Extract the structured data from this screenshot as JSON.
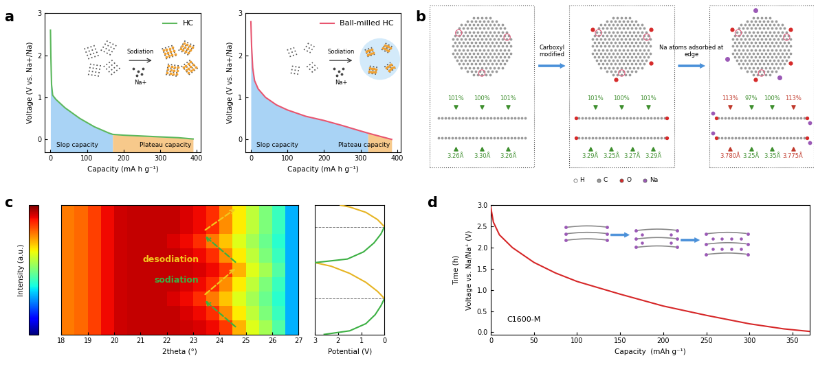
{
  "chart_data": [
    {
      "panel": "a",
      "type": "line",
      "series": [
        {
          "name": "HC",
          "color": "#5cb85c",
          "x": [
            0,
            1,
            3,
            6,
            15,
            40,
            80,
            120,
            160,
            170,
            200,
            250,
            300,
            350,
            390
          ],
          "values": [
            2.6,
            2.0,
            1.3,
            1.05,
            0.95,
            0.75,
            0.5,
            0.3,
            0.15,
            0.12,
            0.1,
            0.08,
            0.06,
            0.04,
            0.01
          ]
        }
      ],
      "xlabel": "Capacity (mA h g⁻¹)",
      "ylabel": "Voltage (V vs. Na+/Na)",
      "xlim": [
        -15,
        410
      ],
      "ylim": [
        -0.3,
        3
      ],
      "xticks": [
        0,
        100,
        200,
        300,
        400
      ],
      "yticks": [
        0,
        1,
        2,
        3
      ],
      "legend": "upper right",
      "regions": [
        {
          "label": "Slop capacity",
          "from": 0,
          "to": 170,
          "color": "#a9d3f5"
        },
        {
          "label": "Plateau capacity",
          "from": 170,
          "to": 390,
          "color": "#f7c98b"
        }
      ],
      "annotations": [
        "Sodiation",
        "Na+"
      ]
    },
    {
      "type": "line",
      "series": [
        {
          "name": "Ball-milled HC",
          "color": "#e8556f",
          "x": [
            0,
            2,
            5,
            10,
            20,
            40,
            70,
            100,
            150,
            200,
            250,
            300,
            320,
            350,
            385
          ],
          "values": [
            2.8,
            2.2,
            1.7,
            1.4,
            1.2,
            1.0,
            0.82,
            0.7,
            0.55,
            0.45,
            0.33,
            0.2,
            0.15,
            0.08,
            0.0
          ]
        }
      ],
      "xlabel": "Capacity (mA h g⁻¹)",
      "ylabel": "Voltage (V vs. Na+/Na)",
      "xlim": [
        -15,
        410
      ],
      "ylim": [
        -0.3,
        3
      ],
      "xticks": [
        0,
        100,
        200,
        300,
        400
      ],
      "yticks": [
        0,
        1,
        2,
        3
      ],
      "legend": "upper right",
      "regions": [
        {
          "label": "Slop capacity",
          "from": 0,
          "to": 320,
          "color": "#a9d3f5"
        },
        {
          "label": "Plateau capacity",
          "from": 320,
          "to": 385,
          "color": "#f7c98b"
        }
      ],
      "annotations": [
        "Sodiation",
        "Na+"
      ]
    },
    {
      "panel": "c",
      "type": "heatmap",
      "x_edges": [
        18,
        18.5,
        19,
        19.5,
        20,
        20.5,
        21,
        21.5,
        22,
        22.5,
        23,
        23.5,
        24,
        24.5,
        25,
        25.5,
        26,
        26.5,
        27
      ],
      "y_edges": [
        0,
        0.4,
        0.8,
        1.2,
        1.6,
        2.0,
        2.4,
        2.8,
        3.2,
        3.6
      ],
      "cells": [
        [
          0.78,
          0.8,
          0.84,
          0.9,
          0.93,
          0.94,
          0.94,
          0.94,
          0.94,
          0.93,
          0.92,
          0.9,
          0.85,
          0.72,
          0.62,
          0.55,
          0.45,
          0.3
        ],
        [
          0.78,
          0.8,
          0.84,
          0.9,
          0.93,
          0.94,
          0.94,
          0.94,
          0.94,
          0.92,
          0.9,
          0.86,
          0.76,
          0.66,
          0.58,
          0.5,
          0.42,
          0.3
        ],
        [
          0.78,
          0.8,
          0.84,
          0.9,
          0.93,
          0.94,
          0.94,
          0.94,
          0.92,
          0.9,
          0.86,
          0.78,
          0.7,
          0.62,
          0.55,
          0.48,
          0.4,
          0.3
        ],
        [
          0.78,
          0.8,
          0.84,
          0.9,
          0.93,
          0.94,
          0.94,
          0.94,
          0.94,
          0.92,
          0.9,
          0.86,
          0.76,
          0.66,
          0.58,
          0.5,
          0.42,
          0.3
        ],
        [
          0.78,
          0.8,
          0.84,
          0.9,
          0.93,
          0.94,
          0.94,
          0.94,
          0.94,
          0.93,
          0.92,
          0.9,
          0.85,
          0.72,
          0.62,
          0.55,
          0.45,
          0.3
        ],
        [
          0.78,
          0.8,
          0.84,
          0.9,
          0.93,
          0.94,
          0.94,
          0.94,
          0.94,
          0.92,
          0.9,
          0.86,
          0.76,
          0.66,
          0.58,
          0.5,
          0.42,
          0.3
        ],
        [
          0.78,
          0.8,
          0.84,
          0.9,
          0.93,
          0.94,
          0.94,
          0.94,
          0.92,
          0.9,
          0.86,
          0.78,
          0.7,
          0.62,
          0.55,
          0.48,
          0.4,
          0.3
        ],
        [
          0.78,
          0.8,
          0.84,
          0.9,
          0.93,
          0.94,
          0.94,
          0.94,
          0.94,
          0.92,
          0.9,
          0.86,
          0.76,
          0.66,
          0.58,
          0.5,
          0.42,
          0.3
        ],
        [
          0.78,
          0.8,
          0.84,
          0.9,
          0.93,
          0.94,
          0.94,
          0.94,
          0.94,
          0.92,
          0.9,
          0.86,
          0.76,
          0.66,
          0.58,
          0.5,
          0.42,
          0.3
        ]
      ],
      "color_range": [
        0,
        1
      ],
      "colorbar_label": "Intensity (a.u.)",
      "xlabel": "2theta (°)",
      "xlim": [
        18,
        27
      ],
      "xticks": [
        18,
        19,
        20,
        21,
        22,
        23,
        24,
        25,
        26,
        27
      ],
      "ylim": [
        0,
        3.6
      ],
      "tick_labels": "x",
      "annotations": [
        {
          "text": "desodiation",
          "color": "#f2c81e"
        },
        {
          "text": "sodiation",
          "color": "#3cb043"
        }
      ]
    },
    {
      "type": "line",
      "series": [
        {
          "color": "#3cb043",
          "x": [
            2.6,
            1.5,
            0.8,
            0.4,
            0.15,
            0.0
          ],
          "values": [
            0,
            0.1,
            0.3,
            0.55,
            0.8,
            1.0
          ]
        },
        {
          "color": "#e6b422",
          "x": [
            0.0,
            0.3,
            0.8,
            1.5,
            2.3,
            3.0
          ],
          "values": [
            1.0,
            1.2,
            1.45,
            1.7,
            1.9,
            2.0
          ]
        },
        {
          "color": "#3cb043",
          "x": [
            3.0,
            1.6,
            0.9,
            0.45,
            0.15,
            0.0
          ],
          "values": [
            2.0,
            2.1,
            2.3,
            2.55,
            2.8,
            3.0
          ]
        },
        {
          "color": "#e6b422",
          "x": [
            0.0,
            0.3,
            0.8,
            1.5,
            1.9
          ],
          "values": [
            3.0,
            3.2,
            3.4,
            3.55,
            3.6
          ]
        }
      ],
      "xlabel": "Potential (V)",
      "xlim": [
        3,
        0
      ],
      "xticks": [
        3,
        2,
        1,
        0
      ],
      "ylim": [
        0,
        3.6
      ],
      "tick_labels": "x",
      "dashed_lines": [
        1.0,
        3.0
      ]
    },
    {
      "panel": "d",
      "type": "line",
      "series": [
        {
          "color": "#d62728",
          "x": [
            0,
            3,
            10,
            25,
            50,
            75,
            100,
            150,
            200,
            250,
            300,
            340,
            370
          ],
          "values": [
            2.95,
            2.6,
            2.3,
            2.0,
            1.65,
            1.4,
            1.2,
            0.9,
            0.62,
            0.4,
            0.2,
            0.08,
            0.02
          ]
        }
      ],
      "xlabel": "Capacity  (mAh g⁻¹)",
      "ylabel": "Voltage vs. Na/Na⁺ (V)",
      "time_label": "Time (h)",
      "xlim": [
        0,
        370
      ],
      "ylim": [
        -0.05,
        3.0
      ],
      "xticks": [
        0,
        50,
        100,
        150,
        200,
        250,
        300,
        350
      ],
      "yticks": [
        0.0,
        0.5,
        1.0,
        1.5,
        2.0,
        2.5,
        3.0
      ],
      "annotations": [
        "C1600-M"
      ]
    }
  ],
  "diagram": {
    "panel": "b",
    "arrows": [
      "Carboxyl\nmodified",
      "Na atoms adsorbed at\nedge"
    ],
    "boxes": [
      {
        "top": [
          {
            "text": "101%",
            "color": "#3f8f2f"
          },
          {
            "text": "100%",
            "color": "#3f8f2f"
          },
          {
            "text": "101%",
            "color": "#3f8f2f"
          }
        ],
        "bottom": [
          {
            "text": "3.26Å",
            "color": "#3f8f2f"
          },
          {
            "text": "3.30Å",
            "color": "#3f8f2f"
          },
          {
            "text": "3.26Å",
            "color": "#3f8f2f"
          }
        ]
      },
      {
        "top": [
          {
            "text": "101%",
            "color": "#3f8f2f"
          },
          {
            "text": "100%",
            "color": "#3f8f2f"
          },
          {
            "text": "101%",
            "color": "#3f8f2f"
          }
        ],
        "bottom": [
          {
            "text": "3.29Å",
            "color": "#3f8f2f"
          },
          {
            "text": "3.25Å",
            "color": "#3f8f2f"
          },
          {
            "text": "3.27Å",
            "color": "#3f8f2f"
          },
          {
            "text": "3.29Å",
            "color": "#3f8f2f"
          }
        ]
      },
      {
        "top": [
          {
            "text": "113%",
            "color": "#c0392b"
          },
          {
            "text": "97%",
            "color": "#3f8f2f"
          },
          {
            "text": "100%",
            "color": "#3f8f2f"
          },
          {
            "text": "113%",
            "color": "#c0392b"
          }
        ],
        "bottom": [
          {
            "text": "3.780Å",
            "color": "#c0392b"
          },
          {
            "text": "3.25Å",
            "color": "#3f8f2f"
          },
          {
            "text": "3.35Å",
            "color": "#3f8f2f"
          },
          {
            "text": "3.775Å",
            "color": "#c0392b"
          }
        ]
      }
    ],
    "legend": [
      {
        "text": "H",
        "color": "#ffffff"
      },
      {
        "text": "C",
        "color": "#9a9a9a"
      },
      {
        "text": "O",
        "color": "#d62a2a"
      },
      {
        "text": "Na",
        "color": "#9b59b6"
      }
    ]
  }
}
